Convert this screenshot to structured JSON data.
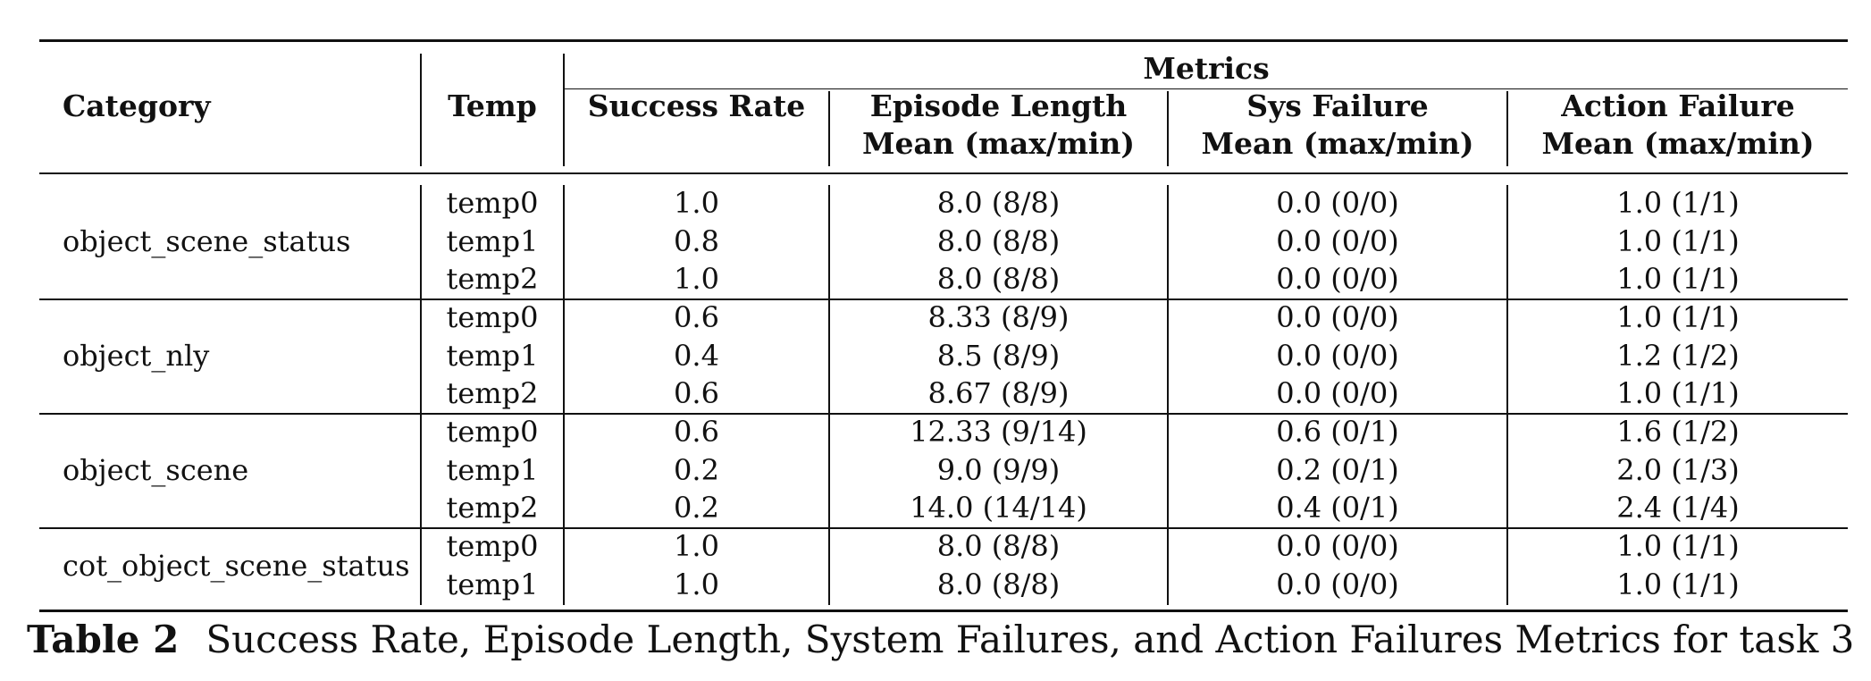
{
  "header": {
    "metrics": "Metrics",
    "category": "Category",
    "temp": "Temp",
    "success_rate": "Success Rate",
    "episode_length_1": "Episode Length",
    "episode_length_2": "Mean (max/min)",
    "sys_failure_1": "Sys Failure",
    "sys_failure_2": "Mean (max/min)",
    "action_failure_1": "Action Failure",
    "action_failure_2": "Mean (max/min)"
  },
  "groups": [
    {
      "category": "object_scene_status",
      "rows": [
        {
          "temp": "temp0",
          "success": "1.0",
          "episode": "8.0 (8/8)",
          "sys": "0.0 (0/0)",
          "action": "1.0 (1/1)"
        },
        {
          "temp": "temp1",
          "success": "0.8",
          "episode": "8.0 (8/8)",
          "sys": "0.0 (0/0)",
          "action": "1.0 (1/1)"
        },
        {
          "temp": "temp2",
          "success": "1.0",
          "episode": "8.0 (8/8)",
          "sys": "0.0 (0/0)",
          "action": "1.0 (1/1)"
        }
      ]
    },
    {
      "category": "object_nly",
      "rows": [
        {
          "temp": "temp0",
          "success": "0.6",
          "episode": "8.33 (8/9)",
          "sys": "0.0 (0/0)",
          "action": "1.0 (1/1)"
        },
        {
          "temp": "temp1",
          "success": "0.4",
          "episode": "8.5 (8/9)",
          "sys": "0.0 (0/0)",
          "action": "1.2 (1/2)"
        },
        {
          "temp": "temp2",
          "success": "0.6",
          "episode": "8.67 (8/9)",
          "sys": "0.0 (0/0)",
          "action": "1.0 (1/1)"
        }
      ]
    },
    {
      "category": "object_scene",
      "rows": [
        {
          "temp": "temp0",
          "success": "0.6",
          "episode": "12.33 (9/14)",
          "sys": "0.6 (0/1)",
          "action": "1.6 (1/2)"
        },
        {
          "temp": "temp1",
          "success": "0.2",
          "episode": "9.0 (9/9)",
          "sys": "0.2 (0/1)",
          "action": "2.0 (1/3)"
        },
        {
          "temp": "temp2",
          "success": "0.2",
          "episode": "14.0 (14/14)",
          "sys": "0.4 (0/1)",
          "action": "2.4 (1/4)"
        }
      ]
    },
    {
      "category": "cot_object_scene_status",
      "rows": [
        {
          "temp": "temp0",
          "success": "1.0",
          "episode": "8.0 (8/8)",
          "sys": "0.0 (0/0)",
          "action": "1.0 (1/1)"
        },
        {
          "temp": "temp1",
          "success": "1.0",
          "episode": "8.0 (8/8)",
          "sys": "0.0 (0/0)",
          "action": "1.0 (1/1)"
        }
      ]
    }
  ],
  "caption": {
    "label": "Table 2",
    "text": "Success Rate, Episode Length, System Failures, and Action Failures Metrics for task 3"
  }
}
